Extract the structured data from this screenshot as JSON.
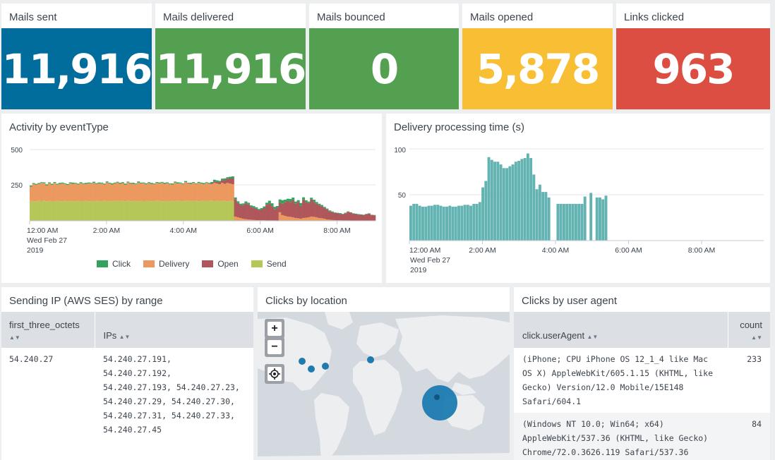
{
  "single_values": [
    {
      "title": "Mails sent",
      "value": "11,916",
      "color": "#006d9c"
    },
    {
      "title": "Mails delivered",
      "value": "11,916",
      "color": "#53a051"
    },
    {
      "title": "Mails bounced",
      "value": "0",
      "color": "#53a051"
    },
    {
      "title": "Mails opened",
      "value": "5,878",
      "color": "#f8be34"
    },
    {
      "title": "Links clicked",
      "value": "963",
      "color": "#dc4e41"
    }
  ],
  "activity": {
    "title": "Activity by eventType",
    "y_ticks": [
      "500",
      "250"
    ],
    "x_ticks": [
      "12:00 AM",
      "2:00 AM",
      "4:00 AM",
      "6:00 AM",
      "8:00 AM"
    ],
    "x_subtitle_1": "Wed Feb 27",
    "x_subtitle_2": "2019",
    "legend": [
      {
        "label": "Click",
        "color": "#31a35f"
      },
      {
        "label": "Delivery",
        "color": "#ec9960"
      },
      {
        "label": "Open",
        "color": "#af575a"
      },
      {
        "label": "Send",
        "color": "#b6c75a"
      }
    ]
  },
  "chart_data": [
    {
      "type": "bar",
      "stacked": true,
      "title": "Activity by eventType",
      "ylim": [
        0,
        500
      ],
      "x_range": [
        "12:00 AM",
        "9:00 AM"
      ],
      "series": [
        {
          "name": "Send",
          "values": [
            140,
            135,
            138,
            140,
            136,
            142,
            138,
            140,
            135,
            138,
            140,
            138,
            137,
            140,
            139,
            138,
            141,
            138,
            140,
            136,
            139,
            140,
            138,
            141,
            137,
            140,
            139,
            138,
            140,
            141,
            138,
            137,
            140,
            139,
            141,
            140,
            138,
            142,
            138,
            140,
            139,
            138,
            140,
            136,
            141,
            140,
            138,
            139,
            140,
            140,
            138,
            141,
            139,
            137,
            140,
            141,
            140,
            139,
            138,
            142,
            140,
            139,
            141,
            140,
            138,
            140,
            139,
            141,
            140,
            142,
            138,
            140,
            139,
            141,
            140,
            138,
            140,
            139,
            0,
            0,
            0,
            0,
            0,
            0,
            0,
            0,
            0,
            0,
            0,
            0,
            0,
            0,
            0,
            0,
            0,
            0,
            0,
            0,
            0,
            0,
            0,
            0,
            0,
            0,
            0,
            0,
            0,
            0,
            0,
            0,
            0,
            0,
            0,
            0,
            0,
            0,
            0,
            0,
            0,
            0,
            0,
            0,
            0,
            0,
            0,
            0,
            0,
            0,
            0,
            0,
            0,
            0
          ]
        },
        {
          "name": "Delivery",
          "values": [
            100,
            125,
            115,
            118,
            130,
            122,
            110,
            125,
            118,
            128,
            115,
            120,
            125,
            118,
            112,
            126,
            119,
            123,
            115,
            128,
            120,
            118,
            125,
            120,
            130,
            118,
            122,
            125,
            115,
            128,
            124,
            118,
            122,
            130,
            119,
            125,
            115,
            128,
            122,
            120,
            118,
            130,
            122,
            128,
            115,
            125,
            120,
            118,
            126,
            122,
            130,
            118,
            125,
            120,
            115,
            128,
            122,
            125,
            118,
            130,
            122,
            120,
            125,
            118,
            128,
            122,
            118,
            125,
            120,
            115,
            128,
            122,
            118,
            125,
            120,
            128,
            122,
            118,
            30,
            25,
            20,
            15,
            12,
            10,
            8,
            6,
            5,
            5,
            4,
            4,
            3,
            3,
            3,
            3,
            2,
            60,
            40,
            35,
            30,
            28,
            25,
            20,
            18,
            15,
            20,
            22,
            25,
            30,
            28,
            25,
            20,
            18,
            15,
            10,
            8,
            6,
            5,
            4,
            4,
            3,
            3,
            3,
            2,
            2,
            2,
            2,
            2,
            2,
            1,
            1,
            1,
            1
          ]
        },
        {
          "name": "Open",
          "values": [
            0,
            0,
            0,
            0,
            0,
            0,
            0,
            0,
            0,
            0,
            0,
            0,
            0,
            0,
            0,
            0,
            0,
            0,
            0,
            0,
            0,
            0,
            0,
            0,
            0,
            0,
            0,
            0,
            0,
            0,
            0,
            0,
            0,
            0,
            0,
            0,
            0,
            0,
            0,
            0,
            0,
            0,
            0,
            0,
            0,
            0,
            0,
            0,
            0,
            0,
            0,
            0,
            0,
            0,
            0,
            0,
            0,
            0,
            0,
            0,
            0,
            0,
            0,
            0,
            0,
            0,
            0,
            0,
            0,
            5,
            10,
            12,
            15,
            20,
            25,
            30,
            35,
            40,
            120,
            100,
            90,
            95,
            110,
            105,
            90,
            85,
            80,
            70,
            75,
            85,
            110,
            120,
            100,
            80,
            90,
            70,
            80,
            95,
            110,
            105,
            120,
            100,
            115,
            90,
            130,
            110,
            100,
            120,
            105,
            95,
            90,
            85,
            75,
            70,
            60,
            55,
            50,
            48,
            45,
            42,
            50,
            60,
            55,
            48,
            45,
            42,
            40,
            38,
            45,
            50,
            40,
            38
          ]
        },
        {
          "name": "Click",
          "values": [
            8,
            5,
            6,
            7,
            5,
            6,
            8,
            5,
            7,
            6,
            5,
            8,
            6,
            5,
            7,
            6,
            8,
            5,
            6,
            7,
            5,
            8,
            6,
            5,
            7,
            6,
            8,
            5,
            6,
            7,
            5,
            8,
            6,
            5,
            7,
            6,
            8,
            5,
            6,
            7,
            5,
            8,
            6,
            5,
            7,
            6,
            8,
            5,
            6,
            7,
            5,
            8,
            6,
            5,
            7,
            6,
            8,
            5,
            6,
            7,
            5,
            8,
            6,
            5,
            7,
            6,
            8,
            5,
            6,
            10,
            12,
            10,
            8,
            10,
            12,
            10,
            12,
            15,
            14,
            12,
            10,
            12,
            14,
            12,
            10,
            12,
            10,
            8,
            10,
            12,
            14,
            18,
            20,
            15,
            12,
            20,
            25,
            18,
            15,
            20,
            18,
            15,
            12,
            20,
            15,
            12,
            10,
            12,
            15,
            12,
            10,
            8,
            8,
            6,
            5,
            5,
            4,
            4,
            5,
            4,
            4,
            3,
            3,
            3,
            3,
            3,
            3,
            3,
            3,
            2,
            2,
            2
          ]
        }
      ]
    },
    {
      "type": "bar",
      "title": "Delivery processing time (s)",
      "ylim": [
        0,
        115
      ],
      "y_ticks": [
        100,
        50
      ],
      "values": [
        38,
        40,
        40,
        38,
        37,
        37,
        38,
        38,
        39,
        39,
        38,
        37,
        37,
        38,
        37,
        37,
        38,
        38,
        39,
        39,
        38,
        40,
        40,
        42,
        58,
        65,
        91,
        88,
        86,
        86,
        83,
        79,
        79,
        81,
        83,
        86,
        87,
        89,
        90,
        95,
        90,
        72,
        56,
        61,
        53,
        53,
        47,
        0,
        0,
        40,
        40,
        40,
        40,
        40,
        40,
        40,
        40,
        40,
        48,
        0,
        52,
        0,
        47,
        47,
        45,
        49,
        0,
        0,
        0,
        0,
        0,
        0,
        0,
        0,
        0,
        0,
        0,
        0,
        0,
        0,
        0,
        0,
        0,
        0,
        0,
        0,
        0,
        0,
        0,
        0,
        0,
        0,
        0,
        0,
        0,
        0,
        0,
        0,
        0,
        0,
        0,
        0,
        0,
        0,
        0,
        0,
        0,
        0,
        0,
        0,
        0,
        0,
        0,
        0,
        0,
        0,
        0,
        0
      ]
    }
  ],
  "delivery": {
    "title": "Delivery processing time (s)",
    "y_ticks": [
      "100",
      "50"
    ],
    "x_ticks": [
      "12:00 AM",
      "2:00 AM",
      "4:00 AM",
      "6:00 AM",
      "8:00 AM"
    ],
    "x_subtitle_1": "Wed Feb 27",
    "x_subtitle_2": "2019",
    "bar_color": "#62b3b2"
  },
  "sending_ip": {
    "title": "Sending IP (AWS SES) by range",
    "columns": [
      "first_three_octets",
      "IPs"
    ],
    "rows": [
      {
        "octets": "54.240.27",
        "ips": [
          "54.240.27.191,",
          "54.240.27.192,",
          "54.240.27.193, 54.240.27.23,",
          "54.240.27.29, 54.240.27.30,",
          "54.240.27.31, 54.240.27.33,",
          "54.240.27.45"
        ]
      }
    ]
  },
  "clicks_location": {
    "title": "Clicks by location",
    "zoom_in": "+",
    "zoom_out": "−",
    "dot_color": "#1e7bb0"
  },
  "user_agent": {
    "title": "Clicks by user agent",
    "columns": [
      "click.userAgent",
      "count"
    ],
    "rows": [
      {
        "agent": [
          "(iPhone; CPU iPhone OS 12_1_4 like Mac",
          "OS X) AppleWebKit/605.1.15 (KHTML, like",
          "Gecko) Version/12.0 Mobile/15E148",
          "Safari/604.1"
        ],
        "count": "233"
      },
      {
        "agent": [
          "(Windows NT 10.0; Win64; x64)",
          "AppleWebKit/537.36 (KHTML, like Gecko)",
          "Chrome/72.0.3626.119 Safari/537.36"
        ],
        "count": "84"
      }
    ]
  }
}
